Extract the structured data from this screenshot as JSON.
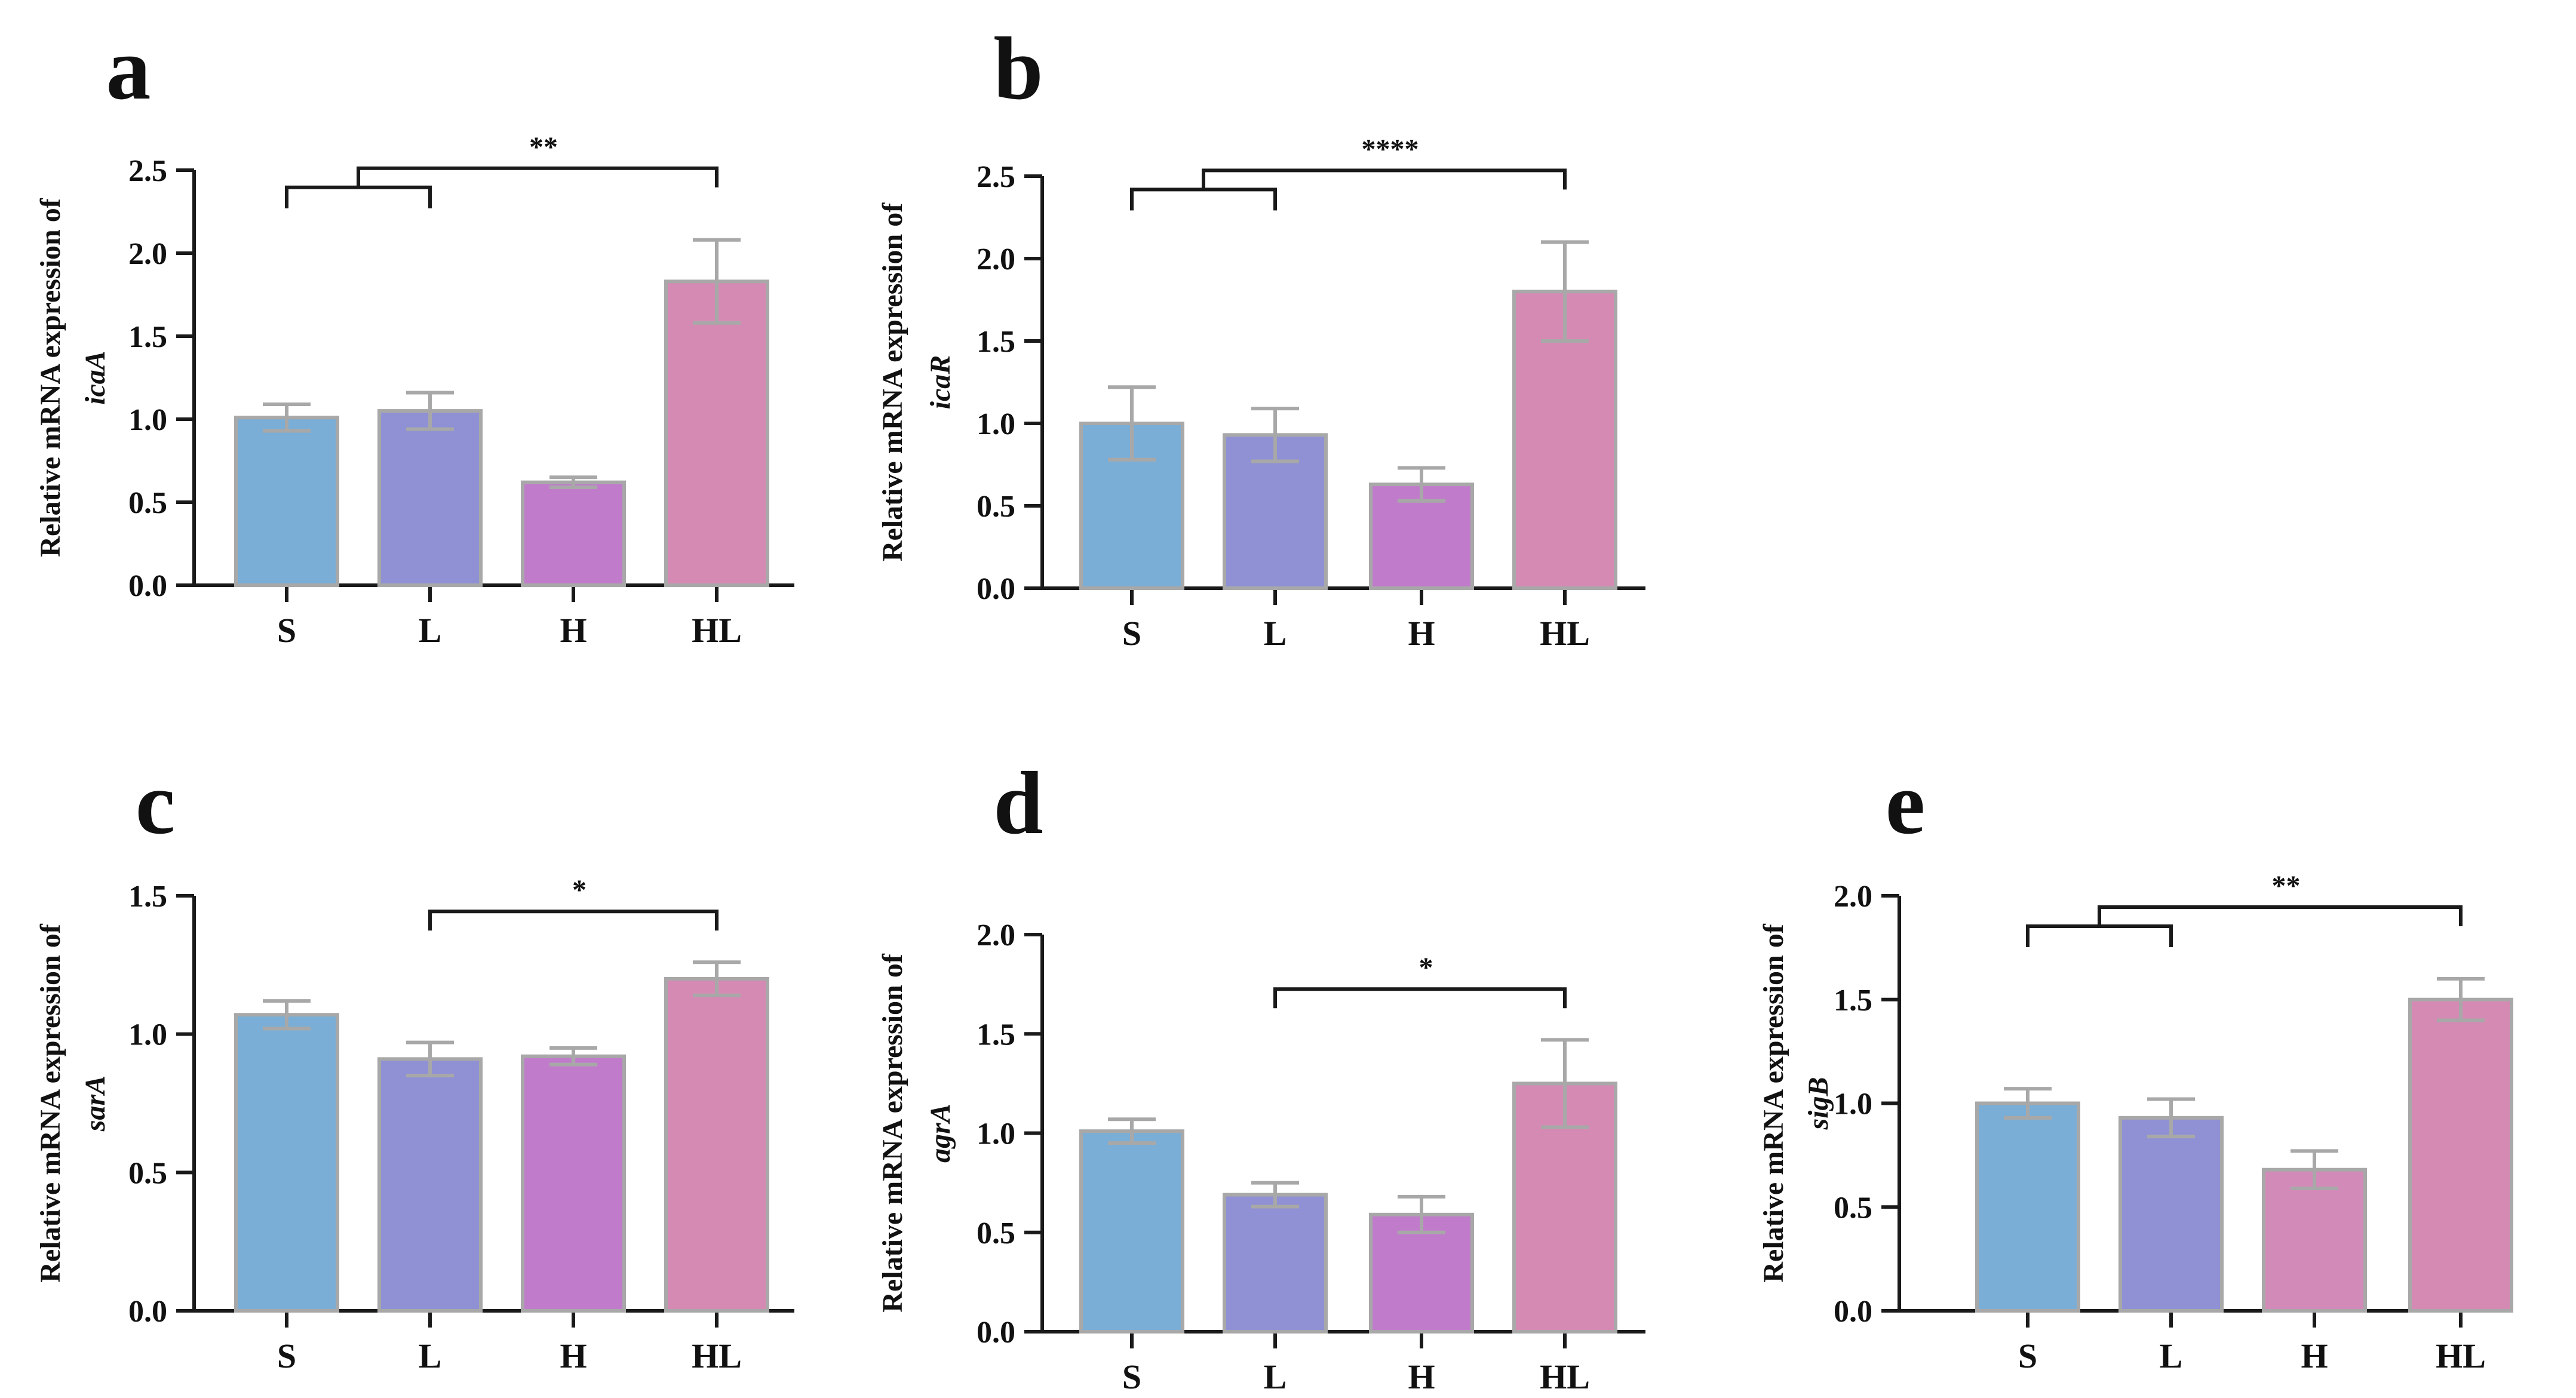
{
  "categories": [
    "S",
    "L",
    "H",
    "HL"
  ],
  "colors": {
    "S": "#7aaed6",
    "L": "#8f91d4",
    "H": "#c07ccb",
    "HL": "#d58ab4",
    "H_panel_e": "#d28ab8",
    "bar_edge": "#a8a8a8",
    "error_bar": "#a8a8a8",
    "bracket": "#1a1a1a"
  },
  "chart_data": [
    {
      "panel": "a",
      "type": "bar",
      "title": "",
      "ylabel_line1": "Relative mRNA expression of",
      "ylabel_gene": "icaA",
      "categories": [
        "S",
        "L",
        "H",
        "HL"
      ],
      "values": [
        1.01,
        1.05,
        0.62,
        1.83
      ],
      "errors": [
        0.08,
        0.11,
        0.03,
        0.25
      ],
      "ylim": [
        0,
        2.5
      ],
      "yticks": [
        0.0,
        0.5,
        1.0,
        1.5,
        2.0,
        2.5
      ],
      "ytick_labels": [
        "0.0",
        "0.5",
        "1.0",
        "1.5",
        "2.0",
        "2.5"
      ],
      "significance": [
        {
          "groups": [
            "S",
            "L"
          ],
          "vs": "HL",
          "label": "**"
        }
      ]
    },
    {
      "panel": "b",
      "type": "bar",
      "title": "",
      "ylabel_line1": "Relative mRNA expression of",
      "ylabel_gene": "icaR",
      "categories": [
        "S",
        "L",
        "H",
        "HL"
      ],
      "values": [
        1.0,
        0.93,
        0.63,
        1.8
      ],
      "errors": [
        0.22,
        0.16,
        0.1,
        0.3
      ],
      "ylim": [
        0,
        2.5
      ],
      "yticks": [
        0.0,
        0.5,
        1.0,
        1.5,
        2.0,
        2.5
      ],
      "ytick_labels": [
        "0.0",
        "0.5",
        "1.0",
        "1.5",
        "2.0",
        "2.5"
      ],
      "significance": [
        {
          "groups": [
            "S",
            "L"
          ],
          "vs": "HL",
          "label": "****"
        }
      ]
    },
    {
      "panel": "c",
      "type": "bar",
      "title": "",
      "ylabel_line1": "Relative mRNA expression of",
      "ylabel_gene": "sarA",
      "categories": [
        "S",
        "L",
        "H",
        "HL"
      ],
      "values": [
        1.07,
        0.91,
        0.92,
        1.2
      ],
      "errors": [
        0.05,
        0.06,
        0.03,
        0.06
      ],
      "ylim": [
        0,
        1.5
      ],
      "yticks": [
        0.0,
        0.5,
        1.0,
        1.5
      ],
      "ytick_labels": [
        "0.0",
        "0.5",
        "1.0",
        "1.5"
      ],
      "significance": [
        {
          "groups": [
            "L"
          ],
          "vs": "HL",
          "label": "*"
        }
      ]
    },
    {
      "panel": "d",
      "type": "bar",
      "title": "",
      "ylabel_line1": "Relative mRNA expression of",
      "ylabel_gene": "agrA",
      "categories": [
        "S",
        "L",
        "H",
        "HL"
      ],
      "values": [
        1.01,
        0.69,
        0.59,
        1.25
      ],
      "errors": [
        0.06,
        0.06,
        0.09,
        0.22
      ],
      "ylim": [
        0,
        2.0
      ],
      "yticks": [
        0.0,
        0.5,
        1.0,
        1.5,
        2.0
      ],
      "ytick_labels": [
        "0.0",
        "0.5",
        "1.0",
        "1.5",
        "2.0"
      ],
      "significance": [
        {
          "groups": [
            "L"
          ],
          "vs": "HL",
          "label": "*"
        }
      ]
    },
    {
      "panel": "e",
      "type": "bar",
      "title": "",
      "ylabel_line1": "Relative mRNA expression of",
      "ylabel_gene": "sigB",
      "categories": [
        "S",
        "L",
        "H",
        "HL"
      ],
      "values": [
        1.0,
        0.93,
        0.68,
        1.5
      ],
      "errors": [
        0.07,
        0.09,
        0.09,
        0.1
      ],
      "ylim": [
        0,
        2.0
      ],
      "yticks": [
        0.0,
        0.5,
        1.0,
        1.5,
        2.0
      ],
      "ytick_labels": [
        "0.0",
        "0.5",
        "1.0",
        "1.5",
        "2.0"
      ],
      "significance": [
        {
          "groups": [
            "S",
            "L"
          ],
          "vs": "HL",
          "label": "**"
        }
      ]
    }
  ]
}
